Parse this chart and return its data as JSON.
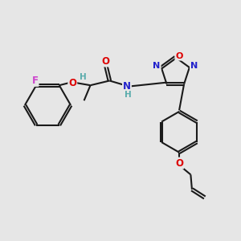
{
  "bg_color": "#e6e6e6",
  "bond_color": "#1a1a1a",
  "atom_colors": {
    "F": "#cc44cc",
    "O": "#dd0000",
    "N": "#2222cc",
    "H": "#5aacac",
    "C": "#1a1a1a"
  },
  "lw": 1.5,
  "fontsize": 8.0
}
